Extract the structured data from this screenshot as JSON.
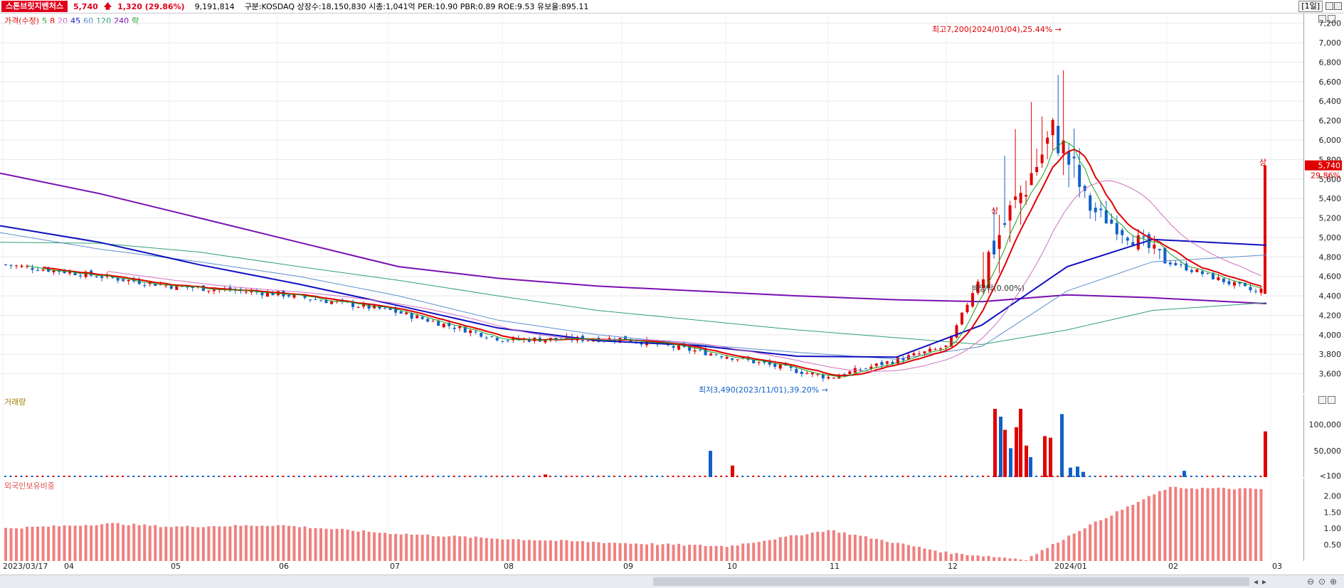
{
  "header": {
    "stock_name": "스톤브릿지벤처스",
    "price": "5,740",
    "change_arrow": "🡅",
    "change": "1,320 (29.86%)",
    "volume": "9,191,814",
    "info": "구분:KOSDAQ 상장수:18,150,830 시총:1,041억 PER:10.90 PBR:0.89 ROE:9.53 유보율:895.11",
    "period": "[1일]"
  },
  "legend": {
    "price_label": "가격(수정)",
    "ma": [
      {
        "label": "5",
        "color": "#1aa01a"
      },
      {
        "label": "8",
        "color": "#e00000"
      },
      {
        "label": "20",
        "color": "#d070c0"
      },
      {
        "label": "45",
        "color": "#1010c0"
      },
      {
        "label": "60",
        "color": "#5b8fd0"
      },
      {
        "label": "120",
        "color": "#30a070"
      },
      {
        "label": "240",
        "color": "#7a10b0"
      },
      {
        "label": "락",
        "color": "#1aa01a"
      }
    ]
  },
  "volume_label": "거래량",
  "foreign_label": "외국인보유비중",
  "colors": {
    "up": "#e00000",
    "down": "#1060c8",
    "foreign": "#f08080"
  },
  "annotations": {
    "high": "최고7,200(2024/01/04),25.44%",
    "low": "최저3,490(2023/11/01),39.20%",
    "dividend": "배당락(0.00%)",
    "limit_up_1": "상",
    "limit_up_2": "상",
    "current_price": "5,740",
    "current_pct": "29.86%"
  },
  "x_labels": [
    "2023/03/17",
    "04",
    "05",
    "06",
    "07",
    "08",
    "09",
    "10",
    "11",
    "12",
    "2024/01",
    "02",
    "03"
  ],
  "chart_data": [
    {
      "type": "candlestick",
      "title": "가격(수정)",
      "ylim": [
        3400,
        7300
      ],
      "yticks": [
        "7,200",
        "7,000",
        "6,800",
        "6,600",
        "6,400",
        "6,200",
        "6,000",
        "5,800",
        "5,600",
        "5,400",
        "5,200",
        "5,000",
        "4,800",
        "4,600",
        "4,400",
        "4,200",
        "4,000",
        "3,800",
        "3,600"
      ],
      "anchors": [
        {
          "date": "2023/03/17",
          "close": 4720
        },
        {
          "date": "2023/04",
          "close": 4650
        },
        {
          "date": "2023/05",
          "close": 4500
        },
        {
          "date": "2023/06",
          "close": 4420
        },
        {
          "date": "2023/07",
          "close": 4250
        },
        {
          "date": "2023/08",
          "close": 3950
        },
        {
          "date": "2023/09",
          "close": 3960
        },
        {
          "date": "2023/10",
          "close": 3780
        },
        {
          "date": "2023/11/01",
          "close": 3560
        },
        {
          "date": "2023/12",
          "close": 3880
        },
        {
          "date": "2023/12 late",
          "close": 5000
        },
        {
          "date": "2024/01/04",
          "close": 6100
        },
        {
          "date": "2024/01 mid",
          "close": 5300
        },
        {
          "date": "2024/02",
          "close": 4750
        },
        {
          "date": "2024/02 late",
          "close": 4420
        },
        {
          "date": "2024/03",
          "close": 5740
        }
      ],
      "ma_lines": [
        {
          "name": "240",
          "values": [
            5660,
            5450,
            5200,
            4950,
            4700,
            4580,
            4500,
            4450,
            4400,
            4360,
            4340,
            4410,
            4380,
            4320
          ]
        },
        {
          "name": "120",
          "values": [
            4950,
            4940,
            4850,
            4700,
            4560,
            4400,
            4250,
            4150,
            4050,
            3970,
            3900,
            4050,
            4250,
            4330
          ]
        },
        {
          "name": "60",
          "values": [
            5050,
            4880,
            4750,
            4600,
            4400,
            4150,
            4000,
            3900,
            3820,
            3750,
            3880,
            4450,
            4750,
            4820
          ]
        },
        {
          "name": "45",
          "values": [
            5120,
            4950,
            4720,
            4520,
            4300,
            4070,
            3940,
            3890,
            3780,
            3770,
            4100,
            4700,
            4980,
            4920
          ]
        }
      ]
    },
    {
      "type": "bar",
      "title": "거래량",
      "yticks": [
        "100,000",
        "50,000",
        "<100"
      ],
      "ylim": [
        0,
        130000
      ],
      "spikes": [
        {
          "date": "2023/08",
          "value": 5000
        },
        {
          "date": "2023/09 late",
          "value": 50000
        },
        {
          "date": "2023/10",
          "value": 22000
        },
        {
          "date": "2023/12 late",
          "value": 130000
        },
        {
          "date": "2023/12 end",
          "value": 130000
        },
        {
          "date": "2024/01 early",
          "value": 120000
        },
        {
          "date": "2024/03",
          "value": 87000
        }
      ]
    },
    {
      "type": "bar",
      "title": "외국인보유비중",
      "yticks": [
        "2.00",
        "1.50",
        "1.00",
        "0.50"
      ],
      "ylim": [
        0,
        2.4
      ],
      "points": [
        {
          "date": "2023/03",
          "value": 1.0
        },
        {
          "date": "2023/04",
          "value": 1.15
        },
        {
          "date": "2023/05",
          "value": 1.05
        },
        {
          "date": "2023/06",
          "value": 1.1
        },
        {
          "date": "2023/07",
          "value": 0.85
        },
        {
          "date": "2023/08",
          "value": 0.68
        },
        {
          "date": "2023/09",
          "value": 0.55
        },
        {
          "date": "2023/10",
          "value": 0.45
        },
        {
          "date": "2023/11",
          "value": 0.95
        },
        {
          "date": "2023/12",
          "value": 0.25
        },
        {
          "date": "2024/01",
          "value": 0.05
        },
        {
          "date": "2024/01 end",
          "value": 1.0
        },
        {
          "date": "2024/02",
          "value": 2.25
        },
        {
          "date": "2024/03",
          "value": 2.2
        }
      ]
    }
  ]
}
